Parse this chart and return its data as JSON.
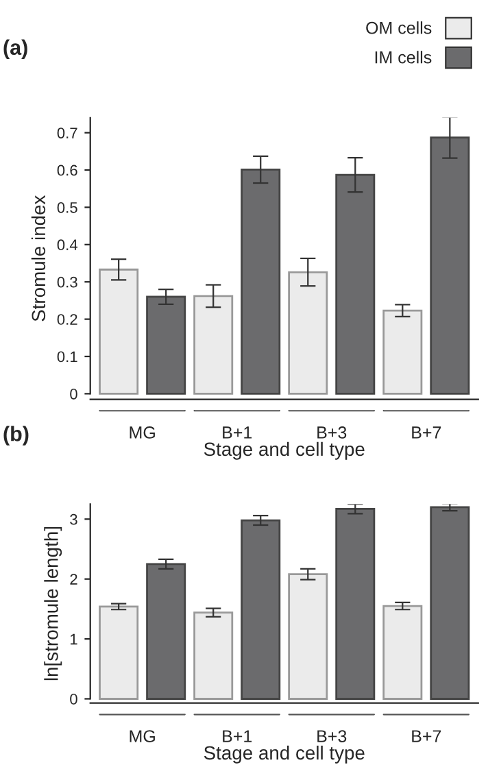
{
  "chart_data": [
    {
      "type": "bar",
      "title": "(a)",
      "xlabel": "Stage and cell type",
      "ylabel": "Stromule index",
      "categories": [
        "MG",
        "B+1",
        "B+3",
        "B+7"
      ],
      "series": [
        {
          "name": "OM cells",
          "color": "#ebebeb",
          "values": [
            0.333,
            0.262,
            0.326,
            0.223
          ],
          "errors": [
            0.028,
            0.03,
            0.037,
            0.016
          ]
        },
        {
          "name": "IM cells",
          "color": "#6b6b6d",
          "values": [
            0.26,
            0.601,
            0.587,
            0.687
          ],
          "errors": [
            0.02,
            0.036,
            0.046,
            0.055
          ]
        }
      ],
      "ylim": [
        -0.015,
        0.74
      ],
      "yticks": [
        0,
        0.1,
        0.2,
        0.3,
        0.4,
        0.5,
        0.6,
        0.7
      ],
      "legend": "top right",
      "grid": false
    },
    {
      "type": "bar",
      "title": "(b)",
      "xlabel": "Stage and cell type",
      "ylabel": "ln[stromule length]",
      "categories": [
        "MG",
        "B+1",
        "B+3",
        "B+7"
      ],
      "series": [
        {
          "color": "#ebebeb",
          "values": [
            1.54,
            1.44,
            2.08,
            1.55
          ],
          "errors": [
            0.05,
            0.07,
            0.09,
            0.06
          ]
        },
        {
          "color": "#6b6b6d",
          "values": [
            2.25,
            2.98,
            3.17,
            3.2
          ],
          "errors": [
            0.08,
            0.08,
            0.08,
            0.06
          ]
        }
      ],
      "ylim": [
        -0.07,
        3.25
      ],
      "yticks": [
        0,
        1,
        2,
        3
      ],
      "legend": false,
      "grid": false
    }
  ]
}
